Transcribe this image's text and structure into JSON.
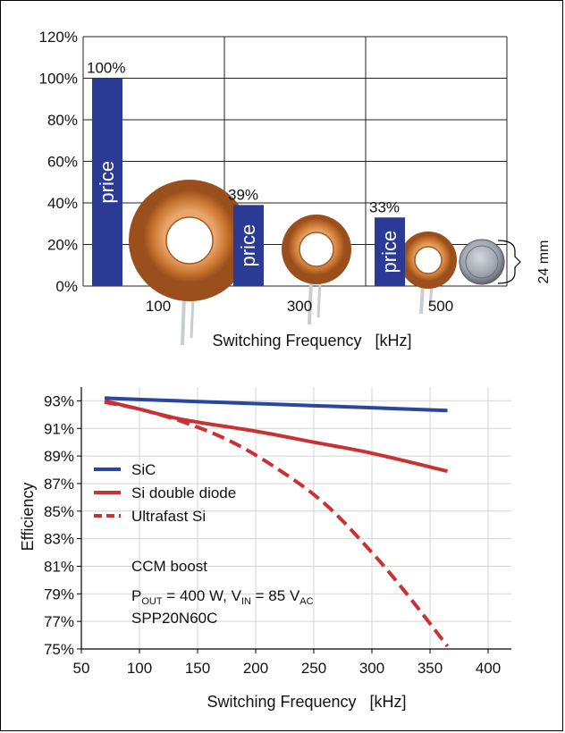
{
  "chart_data": [
    {
      "type": "bar",
      "categories": [
        "100",
        "300",
        "500"
      ],
      "series": [
        {
          "name": "price",
          "values": [
            100,
            39,
            33
          ]
        }
      ],
      "value_labels": [
        "100%",
        "39%",
        "33%"
      ],
      "bar_label": "price",
      "xlabel": "Switching Frequency   [kHz]",
      "ylabel": "",
      "ylim": [
        0,
        120
      ],
      "yticks": [
        0,
        20,
        40,
        60,
        80,
        100,
        120
      ],
      "ytick_suffix": "%",
      "grid": true,
      "annotation": "24 mm",
      "colors": {
        "bar": "#2b3a94",
        "core": "#c8752f",
        "coin": "#8a8f98"
      }
    },
    {
      "type": "line",
      "xlabel": "Switching Frequency   [kHz]",
      "ylabel": "Efficiency",
      "xlim": [
        50,
        420
      ],
      "ylim": [
        75,
        94
      ],
      "xticks": [
        50,
        100,
        150,
        200,
        250,
        300,
        350,
        400
      ],
      "yticks": [
        75,
        77,
        79,
        81,
        83,
        85,
        87,
        89,
        91,
        93
      ],
      "ytick_suffix": "%",
      "grid": true,
      "legend": {
        "position": "left"
      },
      "series": [
        {
          "name": "SiC",
          "style": "solid",
          "color": "#2a46a0",
          "x": [
            70,
            100,
            150,
            200,
            250,
            300,
            365
          ],
          "y": [
            93.2,
            93.1,
            92.95,
            92.8,
            92.65,
            92.5,
            92.3
          ]
        },
        {
          "name": "Si double diode",
          "style": "solid",
          "color": "#c93235",
          "x": [
            70,
            100,
            140,
            200,
            250,
            300,
            365
          ],
          "y": [
            93.0,
            92.4,
            91.6,
            90.8,
            90.0,
            89.2,
            87.9
          ]
        },
        {
          "name": "Ultrafast Si",
          "style": "dashed",
          "color": "#c93235",
          "x": [
            70,
            100,
            140,
            180,
            220,
            260,
            300,
            330,
            365
          ],
          "y": [
            92.9,
            92.4,
            91.4,
            90.0,
            88.0,
            85.5,
            82.0,
            79.0,
            75.2
          ]
        }
      ],
      "annotations": {
        "line1": "CCM boost",
        "line2_parts": [
          "P",
          "OUT",
          " = 400 W, V",
          "IN",
          " = 85 V",
          "AC"
        ],
        "line3": "SPP20N60C"
      }
    }
  ]
}
